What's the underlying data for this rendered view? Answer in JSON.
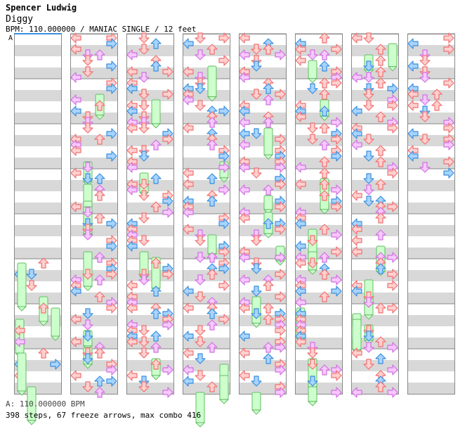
{
  "header": {
    "artist": "Spencer Ludwig",
    "title": "Diggy",
    "meta": "BPM: 110.000000 / MANIAC SINGLE / 12 feet"
  },
  "section_marker": "A",
  "footer": {
    "bpm_note": "A: 110.000000 BPM",
    "stats": "398 steps, 67 freeze arrows, max combo 416"
  },
  "chart": {
    "columns": 8,
    "measures_per_column": 8,
    "lanes": [
      "left",
      "down",
      "up",
      "right"
    ],
    "colors": {
      "stripe": "#d8d8d8",
      "border": "#888888",
      "measure_line": "#888888",
      "red": "#f07070",
      "red_fill": "#ffd0d0",
      "blue": "#3a8edc",
      "blue_fill": "#a8d4ff",
      "pink": "#d070e0",
      "pink_fill": "#f7c8ff",
      "freeze": "#66bb66",
      "freeze_fill": "#ccffcc"
    }
  }
}
